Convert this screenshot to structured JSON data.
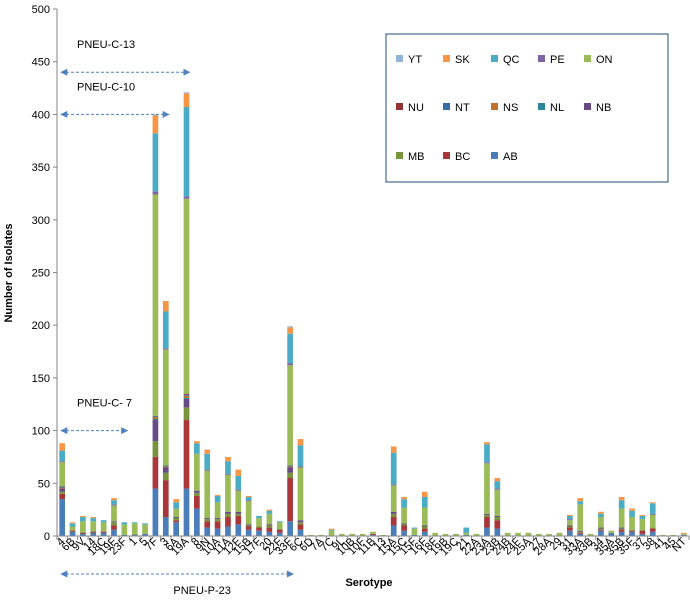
{
  "chart_data": {
    "type": "bar",
    "stacked": true,
    "xlabel": "Serotype",
    "ylabel": "Number of Isolates",
    "ylim": [
      0,
      500
    ],
    "yticks": [
      0,
      50,
      100,
      150,
      200,
      250,
      300,
      350,
      400,
      450,
      500
    ],
    "grid": false,
    "legend_position": "top-right",
    "categories": [
      "4",
      "6B",
      "9V",
      "14",
      "18C",
      "19F",
      "23F",
      "1",
      "5",
      "7F",
      "3",
      "6A",
      "19A",
      "8",
      "9N",
      "10A",
      "11A",
      "12F",
      "15B",
      "17F",
      "20",
      "22F",
      "33F",
      "6C",
      "6D",
      "7A",
      "7C",
      "9L",
      "10B",
      "10F",
      "11B",
      "13",
      "15A",
      "15C",
      "15F",
      "16F",
      "18F",
      "19B",
      "19C",
      "21",
      "22A",
      "23A",
      "23B",
      "24B",
      "24F",
      "25A",
      "27",
      "28A",
      "29",
      "31",
      "33A",
      "33B",
      "34",
      "35A",
      "35B",
      "35F",
      "37",
      "38",
      "41",
      "45",
      "NT"
    ],
    "series": [
      {
        "name": "AB",
        "color": "#4A7EBB",
        "values": [
          35,
          4,
          2,
          3,
          3,
          6,
          1,
          1,
          2,
          45,
          18,
          13,
          45,
          26,
          8,
          7,
          9,
          11,
          6,
          5,
          4,
          3,
          14,
          6,
          0,
          0,
          0,
          0,
          0,
          0,
          1,
          0,
          10,
          5,
          1,
          4,
          0,
          0,
          0,
          1,
          0,
          8,
          7,
          0,
          0,
          0,
          0,
          0,
          0,
          5,
          2,
          0,
          5,
          3,
          4,
          4,
          2,
          4,
          0,
          0,
          1
        ]
      },
      {
        "name": "BC",
        "color": "#A9373A",
        "values": [
          5,
          1,
          1,
          1,
          1,
          4,
          0,
          0,
          0,
          30,
          35,
          2,
          65,
          12,
          6,
          7,
          9,
          8,
          3,
          3,
          4,
          3,
          41,
          5,
          0,
          0,
          0,
          0,
          0,
          0,
          1,
          0,
          8,
          5,
          0,
          3,
          0,
          0,
          0,
          0,
          0,
          10,
          8,
          0,
          0,
          0,
          0,
          0,
          0,
          3,
          1,
          0,
          1,
          0,
          2,
          1,
          3,
          3,
          0,
          0,
          0
        ]
      },
      {
        "name": "MB",
        "color": "#77933C",
        "values": [
          2,
          1,
          1,
          1,
          1,
          3,
          0,
          1,
          0,
          15,
          7,
          2,
          12,
          3,
          2,
          2,
          3,
          2,
          1,
          1,
          2,
          1,
          5,
          2,
          0,
          0,
          0,
          0,
          0,
          0,
          0,
          0,
          3,
          1,
          0,
          2,
          0,
          0,
          0,
          0,
          0,
          2,
          3,
          0,
          0,
          0,
          0,
          0,
          0,
          1,
          1,
          0,
          1,
          0,
          1,
          1,
          1,
          1,
          0,
          0,
          0
        ]
      },
      {
        "name": "NB",
        "color": "#654A86",
        "values": [
          3,
          0,
          0,
          0,
          0,
          1,
          0,
          0,
          0,
          20,
          5,
          1,
          8,
          2,
          1,
          1,
          2,
          2,
          1,
          0,
          1,
          0,
          5,
          2,
          0,
          0,
          0,
          0,
          0,
          0,
          0,
          0,
          2,
          1,
          0,
          1,
          0,
          0,
          0,
          0,
          0,
          1,
          1,
          0,
          0,
          0,
          0,
          0,
          0,
          1,
          1,
          0,
          1,
          0,
          1,
          0,
          0,
          0,
          0,
          0,
          0
        ]
      },
      {
        "name": "NL",
        "color": "#2F8797",
        "values": [
          0,
          0,
          0,
          0,
          0,
          0,
          0,
          0,
          0,
          1,
          0,
          0,
          1,
          0,
          0,
          0,
          0,
          0,
          0,
          0,
          0,
          0,
          0,
          0,
          0,
          0,
          0,
          0,
          0,
          0,
          0,
          0,
          0,
          0,
          0,
          0,
          0,
          0,
          0,
          0,
          0,
          0,
          0,
          0,
          0,
          0,
          0,
          0,
          0,
          0,
          0,
          0,
          0,
          0,
          0,
          0,
          0,
          0,
          0,
          0,
          0
        ]
      },
      {
        "name": "NS",
        "color": "#C0712A",
        "values": [
          1,
          0,
          0,
          0,
          0,
          0,
          0,
          0,
          0,
          2,
          1,
          0,
          2,
          0,
          0,
          0,
          0,
          0,
          0,
          0,
          0,
          0,
          1,
          0,
          0,
          0,
          0,
          0,
          0,
          0,
          0,
          0,
          0,
          0,
          0,
          0,
          0,
          0,
          0,
          0,
          0,
          0,
          0,
          0,
          0,
          0,
          0,
          0,
          0,
          0,
          0,
          0,
          0,
          0,
          0,
          0,
          0,
          0,
          0,
          0,
          0
        ]
      },
      {
        "name": "NT",
        "color": "#376CA5",
        "values": [
          1,
          0,
          0,
          0,
          0,
          0,
          0,
          0,
          0,
          1,
          1,
          0,
          1,
          0,
          0,
          0,
          0,
          0,
          0,
          0,
          0,
          0,
          1,
          0,
          0,
          0,
          0,
          0,
          0,
          0,
          0,
          0,
          0,
          0,
          0,
          0,
          0,
          0,
          0,
          0,
          0,
          0,
          0,
          0,
          0,
          0,
          0,
          0,
          0,
          0,
          0,
          0,
          0,
          0,
          0,
          0,
          0,
          0,
          0,
          0,
          0
        ]
      },
      {
        "name": "NU",
        "color": "#963335",
        "values": [
          0,
          0,
          0,
          0,
          0,
          0,
          0,
          0,
          0,
          0,
          0,
          0,
          1,
          0,
          0,
          0,
          0,
          0,
          0,
          0,
          0,
          0,
          0,
          0,
          0,
          0,
          0,
          0,
          0,
          0,
          0,
          0,
          0,
          0,
          0,
          0,
          0,
          0,
          0,
          0,
          0,
          0,
          0,
          0,
          0,
          0,
          0,
          0,
          0,
          0,
          0,
          0,
          0,
          0,
          0,
          0,
          0,
          0,
          0,
          0,
          0
        ]
      },
      {
        "name": "ON",
        "color": "#9BBB59",
        "values": [
          23,
          3,
          10,
          9,
          8,
          15,
          10,
          10,
          9,
          210,
          110,
          8,
          185,
          35,
          45,
          15,
          35,
          20,
          22,
          8,
          10,
          6,
          95,
          50,
          1,
          1,
          5,
          2,
          2,
          2,
          2,
          1,
          25,
          15,
          6,
          17,
          3,
          2,
          2,
          2,
          2,
          48,
          25,
          3,
          3,
          3,
          2,
          2,
          3,
          5,
          25,
          2,
          10,
          2,
          18,
          12,
          10,
          12,
          1,
          1,
          1
        ]
      },
      {
        "name": "PE",
        "color": "#8064A2",
        "values": [
          1,
          0,
          0,
          0,
          0,
          1,
          0,
          0,
          0,
          3,
          1,
          0,
          2,
          0,
          1,
          0,
          1,
          1,
          1,
          0,
          0,
          0,
          2,
          1,
          0,
          0,
          0,
          0,
          0,
          0,
          0,
          0,
          1,
          0,
          0,
          0,
          0,
          0,
          0,
          0,
          0,
          1,
          1,
          0,
          0,
          0,
          0,
          0,
          0,
          1,
          0,
          0,
          0,
          0,
          0,
          0,
          0,
          1,
          0,
          0,
          0
        ]
      },
      {
        "name": "QC",
        "color": "#4BACC6",
        "values": [
          10,
          3,
          4,
          3,
          2,
          4,
          2,
          1,
          1,
          55,
          35,
          6,
          85,
          10,
          15,
          6,
          12,
          13,
          3,
          2,
          3,
          1,
          28,
          20,
          0,
          0,
          1,
          0,
          0,
          0,
          0,
          0,
          30,
          8,
          1,
          10,
          0,
          0,
          0,
          5,
          0,
          17,
          7,
          0,
          0,
          0,
          0,
          0,
          0,
          3,
          3,
          0,
          3,
          0,
          8,
          6,
          3,
          10,
          0,
          0,
          0
        ]
      },
      {
        "name": "SK",
        "color": "#F79646",
        "values": [
          7,
          1,
          1,
          1,
          0,
          2,
          0,
          0,
          0,
          17,
          10,
          3,
          13,
          2,
          4,
          1,
          4,
          6,
          1,
          0,
          1,
          0,
          6,
          6,
          0,
          0,
          1,
          0,
          0,
          0,
          0,
          0,
          6,
          2,
          0,
          5,
          0,
          0,
          0,
          0,
          0,
          2,
          3,
          0,
          0,
          0,
          0,
          0,
          0,
          1,
          3,
          0,
          2,
          0,
          3,
          2,
          1,
          1,
          0,
          0,
          1
        ]
      },
      {
        "name": "YT",
        "color": "#95B3D7",
        "values": [
          0,
          0,
          0,
          0,
          0,
          0,
          0,
          0,
          0,
          1,
          0,
          0,
          1,
          0,
          0,
          0,
          0,
          0,
          0,
          0,
          0,
          0,
          1,
          0,
          0,
          0,
          0,
          0,
          0,
          0,
          0,
          0,
          0,
          0,
          0,
          0,
          0,
          0,
          0,
          0,
          0,
          0,
          0,
          0,
          0,
          0,
          0,
          0,
          0,
          0,
          0,
          0,
          0,
          0,
          0,
          0,
          0,
          0,
          0,
          0,
          0
        ]
      }
    ],
    "legend_order": [
      "YT",
      "SK",
      "QC",
      "PE",
      "ON",
      "NU",
      "NT",
      "NS",
      "NL",
      "NB",
      "MB",
      "BC",
      "AB"
    ],
    "annotations": [
      {
        "text": "PNEU-C-13",
        "y_value": 440,
        "from": "4",
        "to": "19A"
      },
      {
        "text": "PNEU-C-10",
        "y_value": 400,
        "from": "4",
        "to": "3"
      },
      {
        "text": "PNEU-C- 7",
        "y_value": 100,
        "from": "4",
        "to": "23F"
      },
      {
        "text": "PNEU-P-23",
        "from": "4",
        "to": "33F",
        "below_axis": true
      }
    ]
  }
}
